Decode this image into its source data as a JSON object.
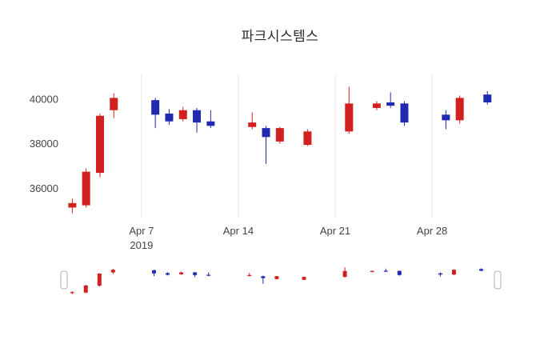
{
  "chart_data": {
    "type": "candlestick",
    "title": "파크시스템스",
    "xlabel": "",
    "ylabel": "",
    "legend": "none",
    "grid": "vertical-only",
    "background": "#ffffff",
    "increasing_color": "#d21f1f",
    "decreasing_color": "#1f2ab0",
    "gridline_color": "#e8e8e8",
    "tick_label_color": "#444444",
    "y_ticks": [
      36000,
      38000,
      40000
    ],
    "y_range": [
      34700,
      41100
    ],
    "x_range_days": [
      1.4,
      33.2
    ],
    "x_ticks": [
      {
        "day": 7,
        "label": "Apr 7",
        "sub": "2019"
      },
      {
        "day": 14,
        "label": "Apr 14",
        "sub": ""
      },
      {
        "day": 21,
        "label": "Apr 21",
        "sub": ""
      },
      {
        "day": 28,
        "label": "Apr 28",
        "sub": ""
      }
    ],
    "rangeslider": {
      "enabled": true,
      "handle_color": "#ffffff",
      "handle_border": "#b0b0b0"
    },
    "candles": [
      {
        "label": "Apr 2",
        "day": 2,
        "open": 35150,
        "high": 35550,
        "low": 34900,
        "close": 35350
      },
      {
        "label": "Apr 3",
        "day": 3,
        "open": 35250,
        "high": 36900,
        "low": 35150,
        "close": 36750
      },
      {
        "label": "Apr 4",
        "day": 4,
        "open": 36700,
        "high": 39350,
        "low": 36500,
        "close": 39250
      },
      {
        "label": "Apr 5",
        "day": 5,
        "open": 39500,
        "high": 40250,
        "low": 39150,
        "close": 40050
      },
      {
        "label": "Apr 8",
        "day": 8,
        "open": 39950,
        "high": 40050,
        "low": 38700,
        "close": 39300
      },
      {
        "label": "Apr 9",
        "day": 9,
        "open": 39350,
        "high": 39550,
        "low": 38850,
        "close": 39000
      },
      {
        "label": "Apr 10",
        "day": 10,
        "open": 39100,
        "high": 39650,
        "low": 39000,
        "close": 39500
      },
      {
        "label": "Apr 11",
        "day": 11,
        "open": 39500,
        "high": 39600,
        "low": 38500,
        "close": 38950
      },
      {
        "label": "Apr 12",
        "day": 12,
        "open": 39000,
        "high": 39500,
        "low": 38700,
        "close": 38800
      },
      {
        "label": "Apr 15",
        "day": 15,
        "open": 38750,
        "high": 39400,
        "low": 38650,
        "close": 38950
      },
      {
        "label": "Apr 16",
        "day": 16,
        "open": 38700,
        "high": 38800,
        "low": 37100,
        "close": 38300
      },
      {
        "label": "Apr 17",
        "day": 17,
        "open": 38100,
        "high": 38750,
        "low": 38000,
        "close": 38700
      },
      {
        "label": "Apr 19",
        "day": 19,
        "open": 37950,
        "high": 38650,
        "low": 37900,
        "close": 38550
      },
      {
        "label": "Apr 22",
        "day": 22,
        "open": 38550,
        "high": 40550,
        "low": 38450,
        "close": 39800
      },
      {
        "label": "Apr 24",
        "day": 24,
        "open": 39600,
        "high": 39900,
        "low": 39500,
        "close": 39800
      },
      {
        "label": "Apr 25",
        "day": 25,
        "open": 39850,
        "high": 40300,
        "low": 39600,
        "close": 39700
      },
      {
        "label": "Apr 26",
        "day": 26,
        "open": 39800,
        "high": 39900,
        "low": 38800,
        "close": 38950
      },
      {
        "label": "Apr 29",
        "day": 29,
        "open": 39300,
        "high": 39500,
        "low": 38650,
        "close": 39050
      },
      {
        "label": "Apr 30",
        "day": 30,
        "open": 39050,
        "high": 40150,
        "low": 38900,
        "close": 40050
      },
      {
        "label": "May 2",
        "day": 32,
        "open": 40200,
        "high": 40350,
        "low": 39750,
        "close": 39850
      }
    ]
  }
}
